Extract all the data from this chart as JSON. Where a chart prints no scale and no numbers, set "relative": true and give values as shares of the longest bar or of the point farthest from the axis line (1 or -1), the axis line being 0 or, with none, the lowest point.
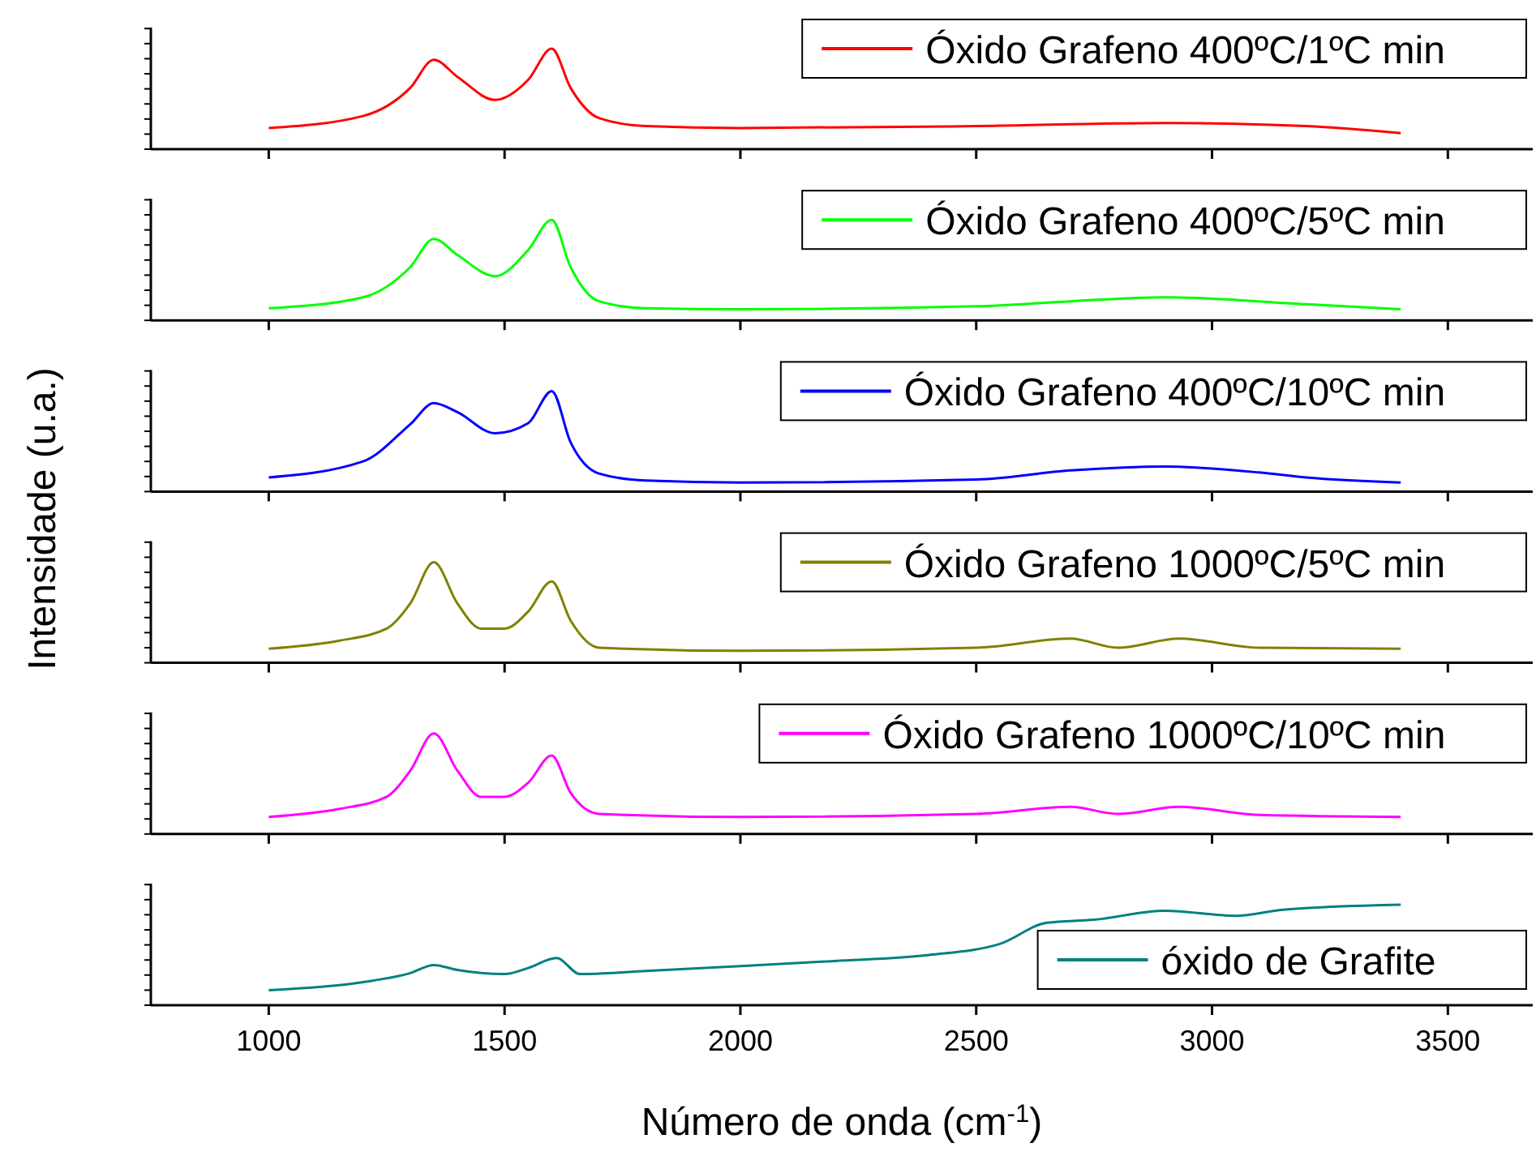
{
  "chart_data": [
    {
      "type": "line",
      "relative": true,
      "xlim": [
        750,
        3680
      ],
      "xticks": [
        1000,
        1500,
        2000,
        2500,
        3000,
        3500
      ],
      "tick_labels": false,
      "legend": "top right",
      "ylabel": "Intensidade (u.a.)",
      "series": [
        {
          "name": "Óxido Grafeno 400ºC/1ºC min",
          "color": "#ff0000",
          "x": [
            1000,
            1200,
            1300,
            1350,
            1400,
            1480,
            1550,
            1600,
            1640,
            1700,
            1800,
            2000,
            2500,
            2900,
            3200,
            3400
          ],
          "values": [
            0.21,
            0.33,
            0.61,
            0.89,
            0.72,
            0.49,
            0.69,
            1.0,
            0.61,
            0.31,
            0.23,
            0.21,
            0.23,
            0.26,
            0.23,
            0.16
          ]
        }
      ]
    },
    {
      "type": "line",
      "relative": true,
      "xlim": [
        750,
        3680
      ],
      "xticks": [
        1000,
        1500,
        2000,
        2500,
        3000,
        3500
      ],
      "tick_labels": false,
      "legend": "top right",
      "series": [
        {
          "name": "Óxido Grafeno 400ºC/5ºC min",
          "color": "#00ff00",
          "x": [
            1000,
            1200,
            1300,
            1350,
            1400,
            1480,
            1550,
            1600,
            1640,
            1700,
            1800,
            2000,
            2500,
            2700,
            2900,
            3200,
            3400
          ],
          "values": [
            0.12,
            0.23,
            0.53,
            0.81,
            0.65,
            0.44,
            0.7,
            1.0,
            0.53,
            0.19,
            0.12,
            0.11,
            0.14,
            0.19,
            0.23,
            0.16,
            0.11
          ]
        }
      ]
    },
    {
      "type": "line",
      "relative": true,
      "xlim": [
        750,
        3680
      ],
      "xticks": [
        1000,
        1500,
        2000,
        2500,
        3000,
        3500
      ],
      "tick_labels": false,
      "legend": "top right",
      "series": [
        {
          "name": "Óxido Grafeno 400ºC/10ºC min",
          "color": "#0000ff",
          "x": [
            1000,
            1200,
            1300,
            1350,
            1400,
            1480,
            1550,
            1600,
            1640,
            1700,
            1800,
            2000,
            2500,
            2700,
            2900,
            3100,
            3200,
            3400
          ],
          "values": [
            0.14,
            0.3,
            0.67,
            0.88,
            0.79,
            0.58,
            0.68,
            1.0,
            0.49,
            0.18,
            0.11,
            0.09,
            0.12,
            0.21,
            0.25,
            0.19,
            0.14,
            0.09
          ]
        }
      ]
    },
    {
      "type": "line",
      "relative": true,
      "xlim": [
        750,
        3680
      ],
      "xticks": [
        1000,
        1500,
        2000,
        2500,
        3000,
        3500
      ],
      "tick_labels": false,
      "legend": "top right",
      "series": [
        {
          "name": "Óxido Grafeno 1000ºC/5ºC min",
          "color": "#808000",
          "x": [
            1000,
            1150,
            1250,
            1300,
            1350,
            1400,
            1450,
            1500,
            1550,
            1600,
            1640,
            1700,
            2000,
            2500,
            2700,
            2800,
            2930,
            3100,
            3400
          ],
          "values": [
            0.14,
            0.22,
            0.34,
            0.59,
            1.0,
            0.59,
            0.34,
            0.34,
            0.51,
            0.81,
            0.42,
            0.15,
            0.12,
            0.15,
            0.24,
            0.15,
            0.24,
            0.15,
            0.14
          ]
        }
      ]
    },
    {
      "type": "line",
      "relative": true,
      "xlim": [
        750,
        3680
      ],
      "xticks": [
        1000,
        1500,
        2000,
        2500,
        3000,
        3500
      ],
      "tick_labels": false,
      "legend": "top right",
      "series": [
        {
          "name": "Óxido Grafeno 1000ºC/10ºC min",
          "color": "#ff00ff",
          "x": [
            1000,
            1150,
            1250,
            1300,
            1350,
            1400,
            1450,
            1500,
            1550,
            1600,
            1640,
            1700,
            2000,
            2500,
            2700,
            2800,
            2930,
            3100,
            3400
          ],
          "values": [
            0.17,
            0.25,
            0.37,
            0.63,
            1.0,
            0.63,
            0.37,
            0.37,
            0.51,
            0.78,
            0.41,
            0.2,
            0.17,
            0.2,
            0.27,
            0.2,
            0.27,
            0.19,
            0.17
          ]
        }
      ]
    },
    {
      "type": "line",
      "relative": true,
      "xlim": [
        750,
        3680
      ],
      "xticks": [
        1000,
        1500,
        2000,
        2500,
        3000,
        3500
      ],
      "tick_labels": "x",
      "legend": "bottom right",
      "xlabel": "Número de onda (cm$^{-1}$)",
      "series": [
        {
          "name": "óxido de Grafite",
          "color": "#008080",
          "x": [
            1000,
            1200,
            1300,
            1350,
            1400,
            1500,
            1550,
            1610,
            1660,
            1800,
            2000,
            2200,
            2400,
            2550,
            2650,
            2750,
            2900,
            3050,
            3150,
            3400
          ],
          "values": [
            0.15,
            0.23,
            0.32,
            0.4,
            0.35,
            0.31,
            0.37,
            0.47,
            0.31,
            0.34,
            0.39,
            0.44,
            0.5,
            0.61,
            0.82,
            0.85,
            0.94,
            0.89,
            0.95,
            1.0
          ]
        }
      ]
    }
  ]
}
